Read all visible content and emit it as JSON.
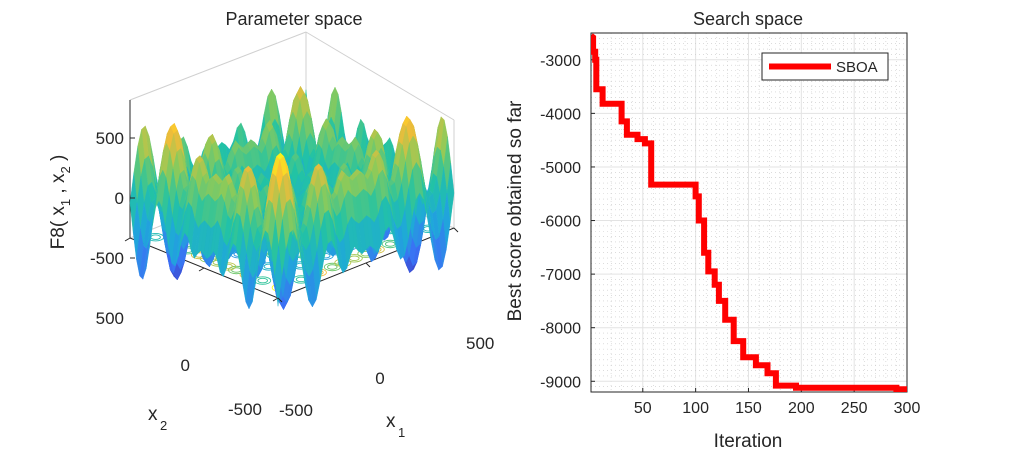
{
  "chart_data": [
    {
      "type": "surface",
      "title": "Parameter space",
      "xlabel": "x",
      "xlabel_sub": "1",
      "ylabel": "x",
      "ylabel_sub": "2",
      "zlabel": "F8( x",
      "zlabel_sub1": "1",
      "zlabel_mid": " , x",
      "zlabel_sub2": "2",
      "zlabel_end": " )",
      "x_ticks": [
        "-500",
        "0",
        "500"
      ],
      "y_ticks": [
        "-500",
        "0",
        "500"
      ],
      "z_ticks": [
        "500",
        "0",
        "-500"
      ],
      "xlim": [
        -500,
        500
      ],
      "ylim": [
        -500,
        500
      ],
      "zlim": [
        -838,
        838
      ]
    },
    {
      "type": "line",
      "title": "Search space",
      "xlabel": "Iteration",
      "ylabel": "Best score obtained so far",
      "xlim": [
        1,
        300
      ],
      "ylim": [
        -9200,
        -2500
      ],
      "x_ticks": [
        50,
        100,
        150,
        200,
        250,
        300
      ],
      "y_ticks": [
        -3000,
        -4000,
        -5000,
        -6000,
        -7000,
        -8000,
        -9000
      ],
      "x_tick_labels": [
        "50",
        "100",
        "150",
        "200",
        "250",
        "300"
      ],
      "y_tick_labels": [
        "-3000",
        "-4000",
        "-5000",
        "-6000",
        "-7000",
        "-8000",
        "-9000"
      ],
      "series": [
        {
          "name": "SBOA",
          "color": "#ff0000",
          "points": [
            [
              1,
              -2550
            ],
            [
              3,
              -2580
            ],
            [
              3,
              -2850
            ],
            [
              5,
              -2850
            ],
            [
              5,
              -3000
            ],
            [
              6,
              -3000
            ],
            [
              6,
              -3550
            ],
            [
              12,
              -3550
            ],
            [
              12,
              -3820
            ],
            [
              30,
              -3820
            ],
            [
              30,
              -4150
            ],
            [
              35,
              -4150
            ],
            [
              35,
              -4400
            ],
            [
              45,
              -4400
            ],
            [
              45,
              -4480
            ],
            [
              52,
              -4480
            ],
            [
              52,
              -4560
            ],
            [
              58,
              -4560
            ],
            [
              58,
              -5330
            ],
            [
              100,
              -5330
            ],
            [
              100,
              -5550
            ],
            [
              103,
              -5550
            ],
            [
              103,
              -6000
            ],
            [
              108,
              -6000
            ],
            [
              108,
              -6600
            ],
            [
              112,
              -6600
            ],
            [
              112,
              -6950
            ],
            [
              118,
              -6950
            ],
            [
              118,
              -7200
            ],
            [
              122,
              -7200
            ],
            [
              122,
              -7500
            ],
            [
              128,
              -7500
            ],
            [
              128,
              -7850
            ],
            [
              136,
              -7850
            ],
            [
              136,
              -8250
            ],
            [
              145,
              -8250
            ],
            [
              145,
              -8550
            ],
            [
              157,
              -8550
            ],
            [
              157,
              -8700
            ],
            [
              168,
              -8700
            ],
            [
              168,
              -8850
            ],
            [
              176,
              -8850
            ],
            [
              176,
              -9080
            ],
            [
              195,
              -9080
            ],
            [
              195,
              -9120
            ],
            [
              290,
              -9120
            ],
            [
              290,
              -9150
            ],
            [
              300,
              -9150
            ]
          ]
        }
      ],
      "legend": "top-right"
    }
  ]
}
